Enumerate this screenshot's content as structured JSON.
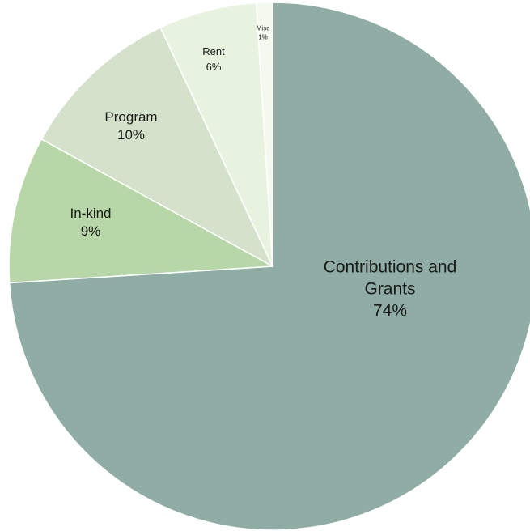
{
  "chart_data": {
    "type": "pie",
    "start": "12 o'clock",
    "direction": "clockwise",
    "legend": "none",
    "slices": [
      {
        "name": "Contributions and Grants",
        "label_lines": [
          "Contributions and",
          "Grants"
        ],
        "percent_label": "74%",
        "value": 74,
        "color": "#8fada5"
      },
      {
        "name": "In-kind",
        "label_lines": [
          "In-kind"
        ],
        "percent_label": "9%",
        "value": 9,
        "color": "#b8d7a8"
      },
      {
        "name": "Program",
        "label_lines": [
          "Program"
        ],
        "percent_label": "10%",
        "value": 10,
        "color": "#d4e2cc"
      },
      {
        "name": "Rent",
        "label_lines": [
          "Rent"
        ],
        "percent_label": "6%",
        "value": 6,
        "color": "#e7f2df"
      },
      {
        "name": "Misc",
        "label_lines": [
          "Misc"
        ],
        "percent_label": "1%",
        "value": 1,
        "color": "#f4f9ef"
      }
    ]
  }
}
